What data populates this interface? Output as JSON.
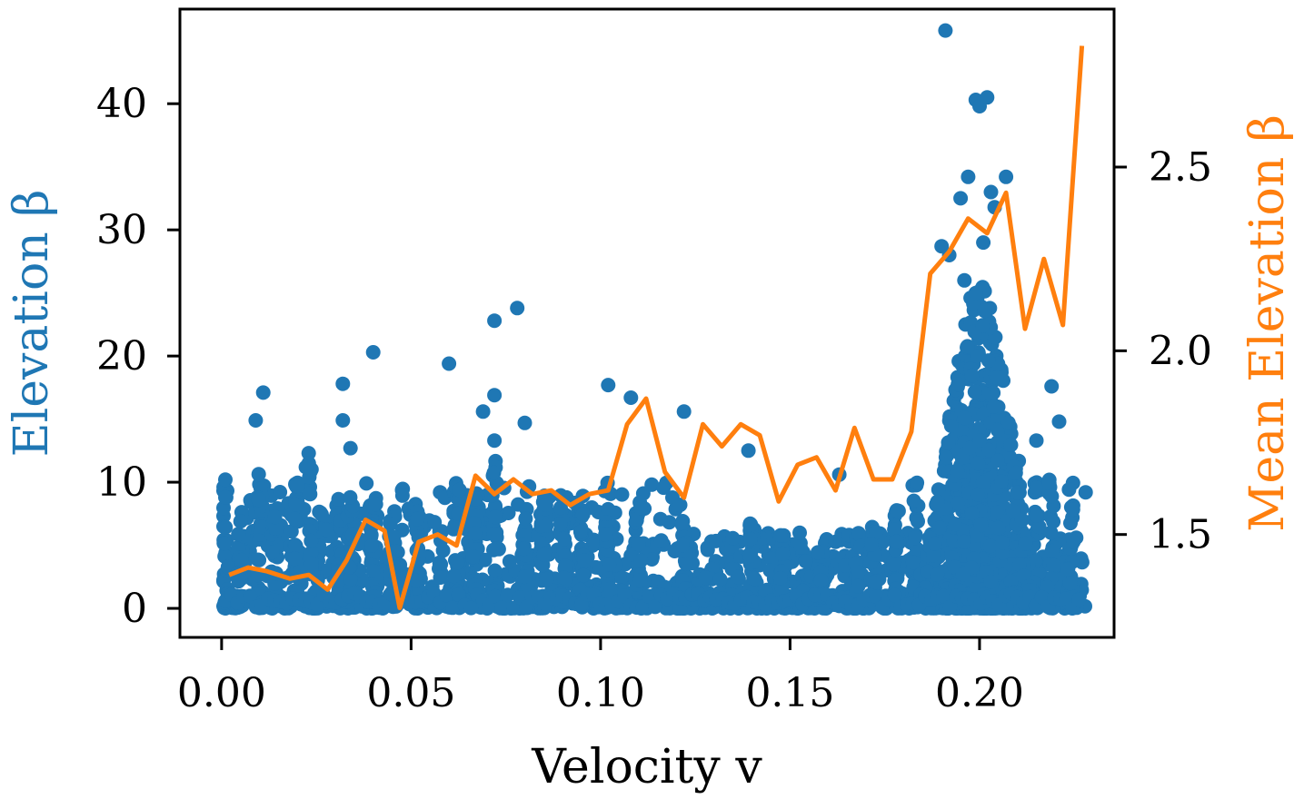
{
  "chart_data": {
    "type": "scatter+line",
    "xlabel": "Velocity v",
    "ylabel_left": "Elevation β",
    "ylabel_right": "Mean Elevation β",
    "colors": {
      "scatter": "#1f77b4",
      "line": "#ff7f0e",
      "axis": "#000000"
    },
    "xlim": [
      -0.011,
      0.2355
    ],
    "ylim_left": [
      -2.3,
      47.5
    ],
    "ylim_right": [
      1.22,
      2.93
    ],
    "x_ticks": [
      0.0,
      0.05,
      0.1,
      0.15,
      0.2
    ],
    "x_tick_labels": [
      "0.00",
      "0.05",
      "0.10",
      "0.15",
      "0.20"
    ],
    "y_left_ticks": [
      0,
      10,
      20,
      30,
      40
    ],
    "y_left_tick_labels": [
      "0",
      "10",
      "20",
      "30",
      "40"
    ],
    "y_right_ticks": [
      1.5,
      2.0,
      2.5
    ],
    "y_right_tick_labels": [
      "1.5",
      "2.0",
      "2.5"
    ],
    "scatter_series": {
      "name": "Elevation β",
      "notable_points": [
        {
          "x": 0.191,
          "y": 45.8
        },
        {
          "x": 0.199,
          "y": 40.3
        },
        {
          "x": 0.2,
          "y": 39.8
        },
        {
          "x": 0.202,
          "y": 40.5
        },
        {
          "x": 0.197,
          "y": 34.2
        },
        {
          "x": 0.207,
          "y": 34.2
        },
        {
          "x": 0.203,
          "y": 33.0
        },
        {
          "x": 0.204,
          "y": 31.8
        },
        {
          "x": 0.195,
          "y": 32.5
        },
        {
          "x": 0.19,
          "y": 28.7
        },
        {
          "x": 0.192,
          "y": 28.0
        },
        {
          "x": 0.201,
          "y": 29.0
        },
        {
          "x": 0.078,
          "y": 23.8
        },
        {
          "x": 0.072,
          "y": 22.8
        },
        {
          "x": 0.04,
          "y": 20.3
        },
        {
          "x": 0.06,
          "y": 19.4
        },
        {
          "x": 0.032,
          "y": 17.8
        },
        {
          "x": 0.011,
          "y": 17.1
        },
        {
          "x": 0.102,
          "y": 17.7
        },
        {
          "x": 0.072,
          "y": 16.9
        },
        {
          "x": 0.108,
          "y": 16.7
        },
        {
          "x": 0.069,
          "y": 15.6
        },
        {
          "x": 0.122,
          "y": 15.6
        },
        {
          "x": 0.219,
          "y": 17.6
        },
        {
          "x": 0.032,
          "y": 14.9
        },
        {
          "x": 0.009,
          "y": 14.9
        },
        {
          "x": 0.08,
          "y": 14.7
        },
        {
          "x": 0.221,
          "y": 14.8
        },
        {
          "x": 0.072,
          "y": 13.3
        },
        {
          "x": 0.139,
          "y": 12.5
        },
        {
          "x": 0.034,
          "y": 12.7
        },
        {
          "x": 0.163,
          "y": 10.6
        },
        {
          "x": 0.228,
          "y": 9.2
        },
        {
          "x": 0.005,
          "y": 6.9
        },
        {
          "x": 0.001,
          "y": 10.2
        },
        {
          "x": 0.001,
          "y": 8.8
        },
        {
          "x": 0.121,
          "y": 8.2
        },
        {
          "x": 0.196,
          "y": 26.0
        },
        {
          "x": 0.199,
          "y": 25.0
        },
        {
          "x": 0.215,
          "y": 13.3
        }
      ]
    },
    "line_series": {
      "name": "Mean Elevation β",
      "x": [
        0.002,
        0.007,
        0.012,
        0.018,
        0.023,
        0.028,
        0.033,
        0.038,
        0.043,
        0.047,
        0.052,
        0.057,
        0.062,
        0.067,
        0.072,
        0.077,
        0.082,
        0.087,
        0.092,
        0.097,
        0.102,
        0.107,
        0.112,
        0.117,
        0.122,
        0.127,
        0.132,
        0.137,
        0.142,
        0.147,
        0.152,
        0.157,
        0.162,
        0.167,
        0.172,
        0.177,
        0.182,
        0.187,
        0.192,
        0.197,
        0.202,
        0.207,
        0.212,
        0.217,
        0.222,
        0.227
      ],
      "y": [
        1.39,
        1.41,
        1.4,
        1.38,
        1.39,
        1.35,
        1.43,
        1.54,
        1.51,
        1.3,
        1.48,
        1.5,
        1.47,
        1.66,
        1.61,
        1.65,
        1.61,
        1.62,
        1.58,
        1.61,
        1.62,
        1.8,
        1.87,
        1.67,
        1.6,
        1.8,
        1.74,
        1.8,
        1.77,
        1.59,
        1.69,
        1.71,
        1.62,
        1.79,
        1.65,
        1.65,
        1.78,
        2.21,
        2.27,
        2.36,
        2.32,
        2.43,
        2.06,
        2.25,
        2.07,
        2.83
      ]
    }
  }
}
